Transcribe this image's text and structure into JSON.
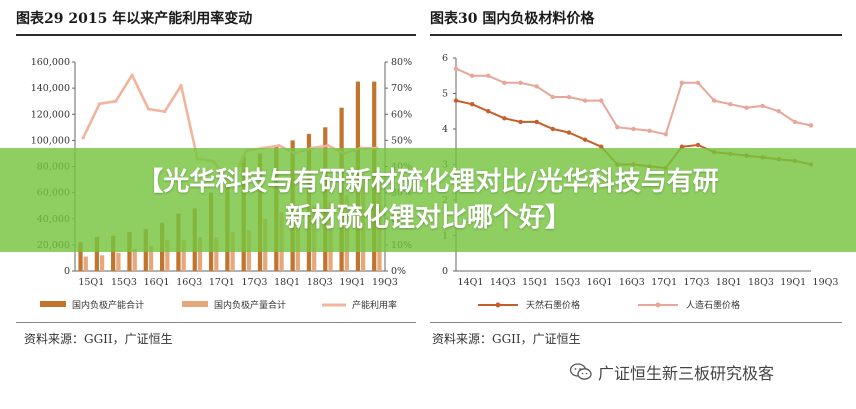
{
  "banner": {
    "line1": "【光华科技与有研新材硫化锂对比/光华科技与有研",
    "line2": "新材硫化锂对比哪个好】"
  },
  "watermark": {
    "text": "广证恒生新三板研究极客",
    "icon": "wechat-icon"
  },
  "colors": {
    "bar_capacity": "#c0742e",
    "bar_output": "#e6a77a",
    "util_line": "#f2b49d",
    "natural_line": "#c65f2a",
    "artificial_line": "#e8a698",
    "banner": "#76c43e"
  },
  "chart_data": [
    {
      "title": "图表29 2015 年以来产能利用率变动",
      "type": "bar",
      "source": "资料来源：GGII，广证恒生",
      "categories": [
        "15Q1",
        "15Q2",
        "15Q3",
        "15Q4",
        "16Q1",
        "16Q2",
        "16Q3",
        "16Q4",
        "17Q1",
        "17Q2",
        "17Q3",
        "17Q4",
        "18Q1",
        "18Q2",
        "18Q3",
        "18Q4",
        "19Q1",
        "19Q2",
        "19Q3"
      ],
      "x_tick_labels": [
        "15Q1",
        "15Q3",
        "16Q1",
        "16Q3",
        "17Q1",
        "17Q3",
        "18Q1",
        "18Q3",
        "19Q1",
        "19Q3"
      ],
      "y_left": {
        "ticks": [
          "0",
          "20,000",
          "40,000",
          "60,000",
          "80,000",
          "100,000",
          "120,000",
          "140,000",
          "160,000"
        ],
        "ylim": [
          0,
          160000
        ]
      },
      "y_right": {
        "ticks": [
          "0%",
          "10%",
          "20%",
          "30%",
          "40%",
          "50%",
          "60%",
          "70%",
          "80%"
        ],
        "ylim": [
          0,
          80
        ]
      },
      "series": [
        {
          "name": "国内负极产能合计",
          "axis": "left",
          "kind": "bar",
          "values": [
            22000,
            26000,
            27000,
            30000,
            32000,
            37000,
            44000,
            48000,
            60000,
            66000,
            88000,
            90000,
            95000,
            100000,
            105000,
            110000,
            125000,
            145000,
            145000
          ]
        },
        {
          "name": "国内负极产量合计",
          "axis": "left",
          "kind": "bar",
          "values": [
            11000,
            12000,
            14000,
            17000,
            19000,
            24000,
            24000,
            26000,
            26000,
            30000,
            31000,
            40000,
            45000,
            45000,
            50000,
            53000,
            58000,
            69000,
            68000
          ]
        },
        {
          "name": "产能利用率",
          "axis": "right",
          "kind": "line",
          "values": [
            51,
            64,
            65,
            75,
            62,
            61,
            71,
            43,
            42,
            33,
            46,
            47,
            48,
            45,
            47,
            48,
            45,
            47,
            47
          ]
        }
      ]
    },
    {
      "title": "图表30 国内负极材料价格",
      "type": "line",
      "source": "资料来源：GGII，广证恒生",
      "categories": [
        "14Q1",
        "14Q2",
        "14Q3",
        "14Q4",
        "15Q1",
        "15Q2",
        "15Q3",
        "15Q4",
        "16Q1",
        "16Q2",
        "16Q3",
        "16Q4",
        "17Q1",
        "17Q2",
        "17Q3",
        "17Q4",
        "18Q1",
        "18Q2",
        "18Q3",
        "18Q4",
        "19Q1",
        "19Q2",
        "19Q3"
      ],
      "x_tick_labels": [
        "14Q1",
        "14Q3",
        "15Q1",
        "15Q3",
        "16Q1",
        "16Q3",
        "17Q1",
        "17Q3",
        "18Q1",
        "18Q3",
        "19Q1",
        "19Q3"
      ],
      "y": {
        "ticks": [
          "0",
          "1",
          "2",
          "3",
          "4",
          "5",
          "6"
        ],
        "ylim": [
          0,
          6
        ]
      },
      "series": [
        {
          "name": "天然石墨价格",
          "values": [
            4.8,
            4.7,
            4.5,
            4.3,
            4.2,
            4.2,
            4.0,
            3.9,
            3.7,
            3.5,
            3.0,
            3.0,
            2.95,
            2.9,
            3.5,
            3.55,
            3.35,
            3.3,
            3.25,
            3.2,
            3.15,
            3.1,
            3.0
          ]
        },
        {
          "name": "人造石墨价格",
          "values": [
            5.7,
            5.5,
            5.5,
            5.3,
            5.3,
            5.2,
            4.9,
            4.9,
            4.8,
            4.8,
            4.05,
            4.0,
            3.95,
            3.85,
            5.3,
            5.3,
            4.8,
            4.7,
            4.6,
            4.65,
            4.5,
            4.2,
            4.1
          ]
        }
      ]
    }
  ]
}
